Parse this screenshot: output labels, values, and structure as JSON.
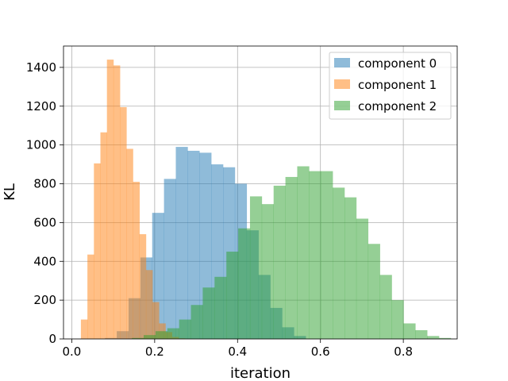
{
  "chart_data": {
    "type": "histogram",
    "title": "",
    "xlabel": "iteration",
    "ylabel": "KL",
    "xlim": [
      -0.02,
      0.93
    ],
    "ylim": [
      0,
      1510
    ],
    "xticks": [
      0.0,
      0.2,
      0.4,
      0.6,
      0.8
    ],
    "xtick_labels": [
      "0.0",
      "0.2",
      "0.4",
      "0.6",
      "0.8"
    ],
    "yticks": [
      0,
      200,
      400,
      600,
      800,
      1000,
      1200,
      1400
    ],
    "ytick_labels": [
      "0",
      "200",
      "400",
      "600",
      "800",
      "1000",
      "1200",
      "1400"
    ],
    "grid": true,
    "legend_position": "top-right",
    "alpha": 0.5,
    "series": [
      {
        "name": "component 0",
        "color": "#1f77b4",
        "bins_start": 0.08,
        "bin_width": 0.0285,
        "counts": [
          5,
          40,
          210,
          420,
          650,
          825,
          990,
          970,
          960,
          900,
          885,
          800,
          560,
          330,
          160,
          60,
          15
        ]
      },
      {
        "name": "component 1",
        "color": "#ff7f0e",
        "bins_start": 0.022,
        "bin_width": 0.0157,
        "counts": [
          100,
          435,
          905,
          1065,
          1440,
          1410,
          1195,
          980,
          810,
          540,
          355,
          190,
          80,
          35,
          10,
          3
        ]
      },
      {
        "name": "component 2",
        "color": "#2ca02c",
        "bins_start": 0.145,
        "bin_width": 0.0285,
        "counts": [
          5,
          20,
          40,
          55,
          100,
          175,
          265,
          320,
          450,
          570,
          735,
          695,
          790,
          835,
          890,
          865,
          865,
          780,
          730,
          620,
          490,
          330,
          200,
          80,
          45,
          15,
          5
        ]
      }
    ]
  }
}
